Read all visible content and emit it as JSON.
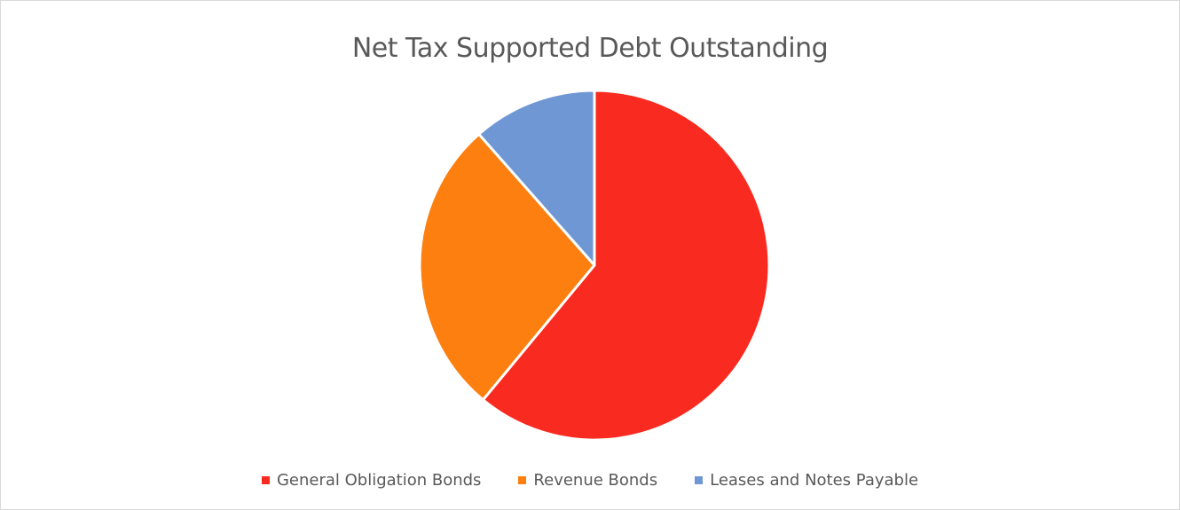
{
  "chart_data": {
    "type": "pie",
    "title": "Net Tax Supported Debt Outstanding",
    "legend_position": "bottom",
    "slices": [
      {
        "label": "General Obligation Bonds",
        "value": 61.0,
        "color": "#f92b20"
      },
      {
        "label": "Revenue Bonds",
        "value": 27.5,
        "color": "#fd7f10"
      },
      {
        "label": "Leases and Notes Payable",
        "value": 11.5,
        "color": "#6f97d4"
      }
    ]
  }
}
